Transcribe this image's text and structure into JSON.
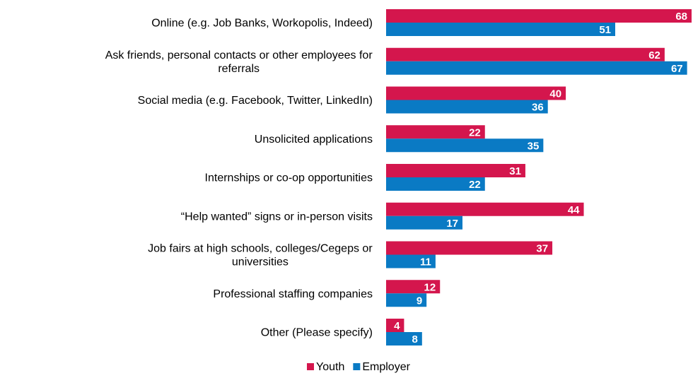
{
  "chart_data": {
    "type": "bar",
    "orientation": "horizontal",
    "categories": [
      "Online (e.g. Job Banks, Workopolis, Indeed)",
      "Ask friends, personal contacts or other employees for referrals",
      "Social media (e.g. Facebook, Twitter, LinkedIn)",
      "Unsolicited applications",
      "Internships or co-op opportunities",
      "“Help wanted” signs or in-person visits",
      "Job fairs at high schools, colleges/Cegeps or universities",
      "Professional staffing companies",
      "Other (Please specify)"
    ],
    "category_lines": [
      [
        "Online (e.g. Job Banks, Workopolis, Indeed)"
      ],
      [
        "Ask friends, personal contacts or other employees for",
        "referrals"
      ],
      [
        "Social media (e.g. Facebook, Twitter, LinkedIn)"
      ],
      [
        "Unsolicited applications"
      ],
      [
        "Internships or co-op opportunities"
      ],
      [
        "“Help wanted” signs or in-person visits"
      ],
      [
        "Job fairs at high schools, colleges/Cegeps or",
        "universities"
      ],
      [
        "Professional staffing companies"
      ],
      [
        "Other (Please specify)"
      ]
    ],
    "series": [
      {
        "name": "Youth",
        "color": "#d4164d",
        "values": [
          68,
          62,
          40,
          22,
          31,
          44,
          37,
          12,
          4
        ]
      },
      {
        "name": "Employer",
        "color": "#0a7ac4",
        "values": [
          51,
          67,
          36,
          35,
          22,
          17,
          11,
          9,
          8
        ]
      }
    ],
    "xlim": [
      0,
      68
    ],
    "grid": false,
    "legend_position": "bottom-center",
    "data_labels": true
  }
}
